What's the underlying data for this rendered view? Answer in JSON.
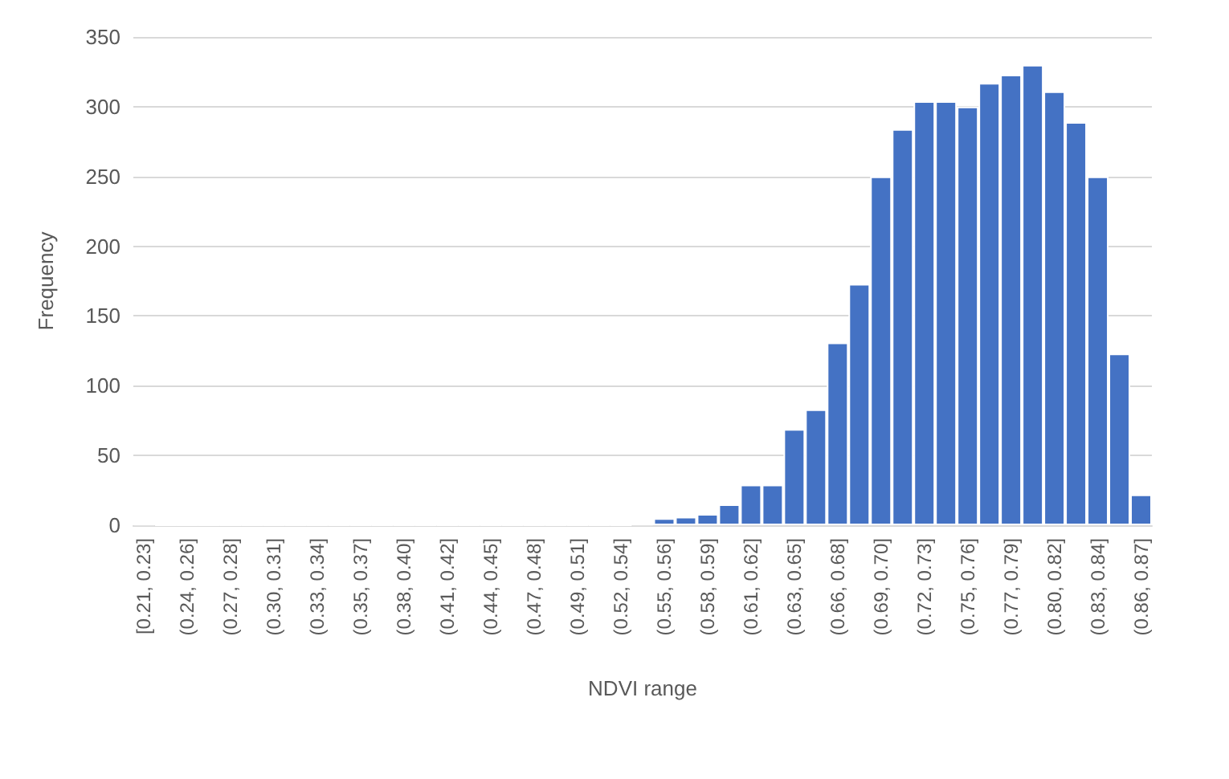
{
  "chart_data": {
    "type": "bar",
    "xlabel": "NDVI range",
    "ylabel": "Frequency",
    "categories": [
      "[0.21, 0.23]",
      null,
      "(0.24, 0.26]",
      null,
      "(0.27, 0.28]",
      null,
      "(0.30, 0.31]",
      null,
      "(0.33, 0.34]",
      null,
      "(0.35, 0.37]",
      null,
      "(0.38, 0.40]",
      null,
      "(0.41, 0.42]",
      null,
      "(0.44, 0.45]",
      null,
      "(0.47, 0.48]",
      null,
      "(0.49, 0.51]",
      null,
      "(0.52, 0.54]",
      null,
      "(0.55, 0.56]",
      null,
      "(0.58, 0.59]",
      null,
      "(0.61, 0.62]",
      null,
      "(0.63, 0.65]",
      null,
      "(0.66, 0.68]",
      null,
      "(0.69, 0.70]",
      null,
      "(0.72, 0.73]",
      null,
      "(0.75, 0.76]",
      null,
      "(0.77, 0.79]",
      null,
      "(0.80, 0.82]",
      null,
      "(0.83, 0.84]",
      null,
      "(0.86, 0.87]"
    ],
    "values": [
      1,
      0,
      0,
      0,
      0,
      0,
      0,
      0,
      0,
      0,
      0,
      0,
      0,
      0,
      0,
      0,
      0,
      0,
      0,
      0,
      0,
      0,
      0,
      1,
      5,
      6,
      8,
      15,
      29,
      29,
      69,
      83,
      131,
      173,
      250,
      284,
      304,
      304,
      300,
      317,
      323,
      330,
      311,
      289,
      250,
      123,
      22
    ],
    "color": "#4472c4",
    "ylim": [
      0,
      350
    ],
    "yticks": [
      0,
      50,
      100,
      150,
      200,
      250,
      300,
      350
    ],
    "grid": "y"
  }
}
